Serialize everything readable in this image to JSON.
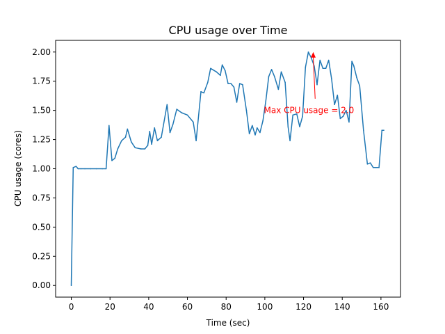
{
  "chart_data": {
    "type": "line",
    "title": "CPU usage over Time",
    "xlabel": "Time (sec)",
    "ylabel": "CPU usage (cores)",
    "xlim": [
      -8.1,
      170.1
    ],
    "ylim": [
      -0.1,
      2.1
    ],
    "xticks": [
      0,
      20,
      40,
      60,
      80,
      100,
      120,
      140,
      160
    ],
    "xtick_labels": [
      "0",
      "20",
      "40",
      "60",
      "80",
      "100",
      "120",
      "140",
      "160"
    ],
    "yticks": [
      0.0,
      0.25,
      0.5,
      0.75,
      1.0,
      1.25,
      1.5,
      1.75,
      2.0
    ],
    "ytick_labels": [
      "0.00",
      "0.25",
      "0.50",
      "0.75",
      "1.00",
      "1.25",
      "1.50",
      "1.75",
      "2.00"
    ],
    "grid": false,
    "line_color": "#1f77b4",
    "series": [
      {
        "x": [
          0,
          1,
          2.5,
          3.5,
          5,
          7,
          10,
          13,
          16,
          18,
          19.5,
          21,
          22.5,
          24,
          26,
          28,
          29,
          31,
          33,
          36,
          38,
          39.5,
          40.5,
          41.5,
          43,
          44.5,
          46.5,
          49.5,
          51,
          52.5,
          54.5,
          57,
          60,
          63,
          64.5,
          67,
          68.5,
          70.5,
          72,
          75,
          77,
          78,
          79.5,
          81,
          82.5,
          84,
          85.5,
          87,
          88.5,
          90.5,
          92,
          93.5,
          95,
          96,
          97.5,
          99,
          100.5,
          102,
          103.5,
          105,
          107,
          108.5,
          110.5,
          112,
          113,
          114.5,
          116.5,
          118,
          119.5,
          121,
          122.5,
          124,
          125.5,
          127,
          128.5,
          130,
          131.5,
          133,
          134.5,
          136,
          137.5,
          139,
          140.5,
          142,
          143.5,
          145,
          146,
          147.5,
          149,
          151,
          153,
          154.5,
          156,
          157.5,
          159,
          160.5,
          161.5
        ],
        "y": [
          0.0,
          1.01,
          1.02,
          1.0,
          1.0,
          1.0,
          1.0,
          1.0,
          1.0,
          1.0,
          1.37,
          1.07,
          1.09,
          1.17,
          1.24,
          1.27,
          1.34,
          1.23,
          1.18,
          1.17,
          1.17,
          1.2,
          1.32,
          1.21,
          1.35,
          1.24,
          1.27,
          1.55,
          1.31,
          1.38,
          1.51,
          1.48,
          1.46,
          1.4,
          1.24,
          1.66,
          1.65,
          1.74,
          1.86,
          1.83,
          1.8,
          1.89,
          1.84,
          1.73,
          1.73,
          1.7,
          1.57,
          1.73,
          1.72,
          1.5,
          1.3,
          1.37,
          1.29,
          1.35,
          1.31,
          1.41,
          1.58,
          1.79,
          1.85,
          1.79,
          1.68,
          1.83,
          1.74,
          1.36,
          1.24,
          1.46,
          1.47,
          1.36,
          1.45,
          1.87,
          2.0,
          1.95,
          1.88,
          1.72,
          1.93,
          1.86,
          1.86,
          1.93,
          1.77,
          1.55,
          1.63,
          1.43,
          1.45,
          1.5,
          1.4,
          1.92,
          1.88,
          1.78,
          1.71,
          1.33,
          1.04,
          1.05,
          1.01,
          1.01,
          1.01,
          1.33,
          1.33
        ]
      }
    ],
    "annotation": {
      "text": "Max CPU usage = 2.0",
      "point": [
        125,
        2.0
      ],
      "text_position": [
        99.5,
        1.5
      ],
      "arrow_tail": [
        126,
        1.6
      ],
      "color": "#ff0000"
    }
  }
}
